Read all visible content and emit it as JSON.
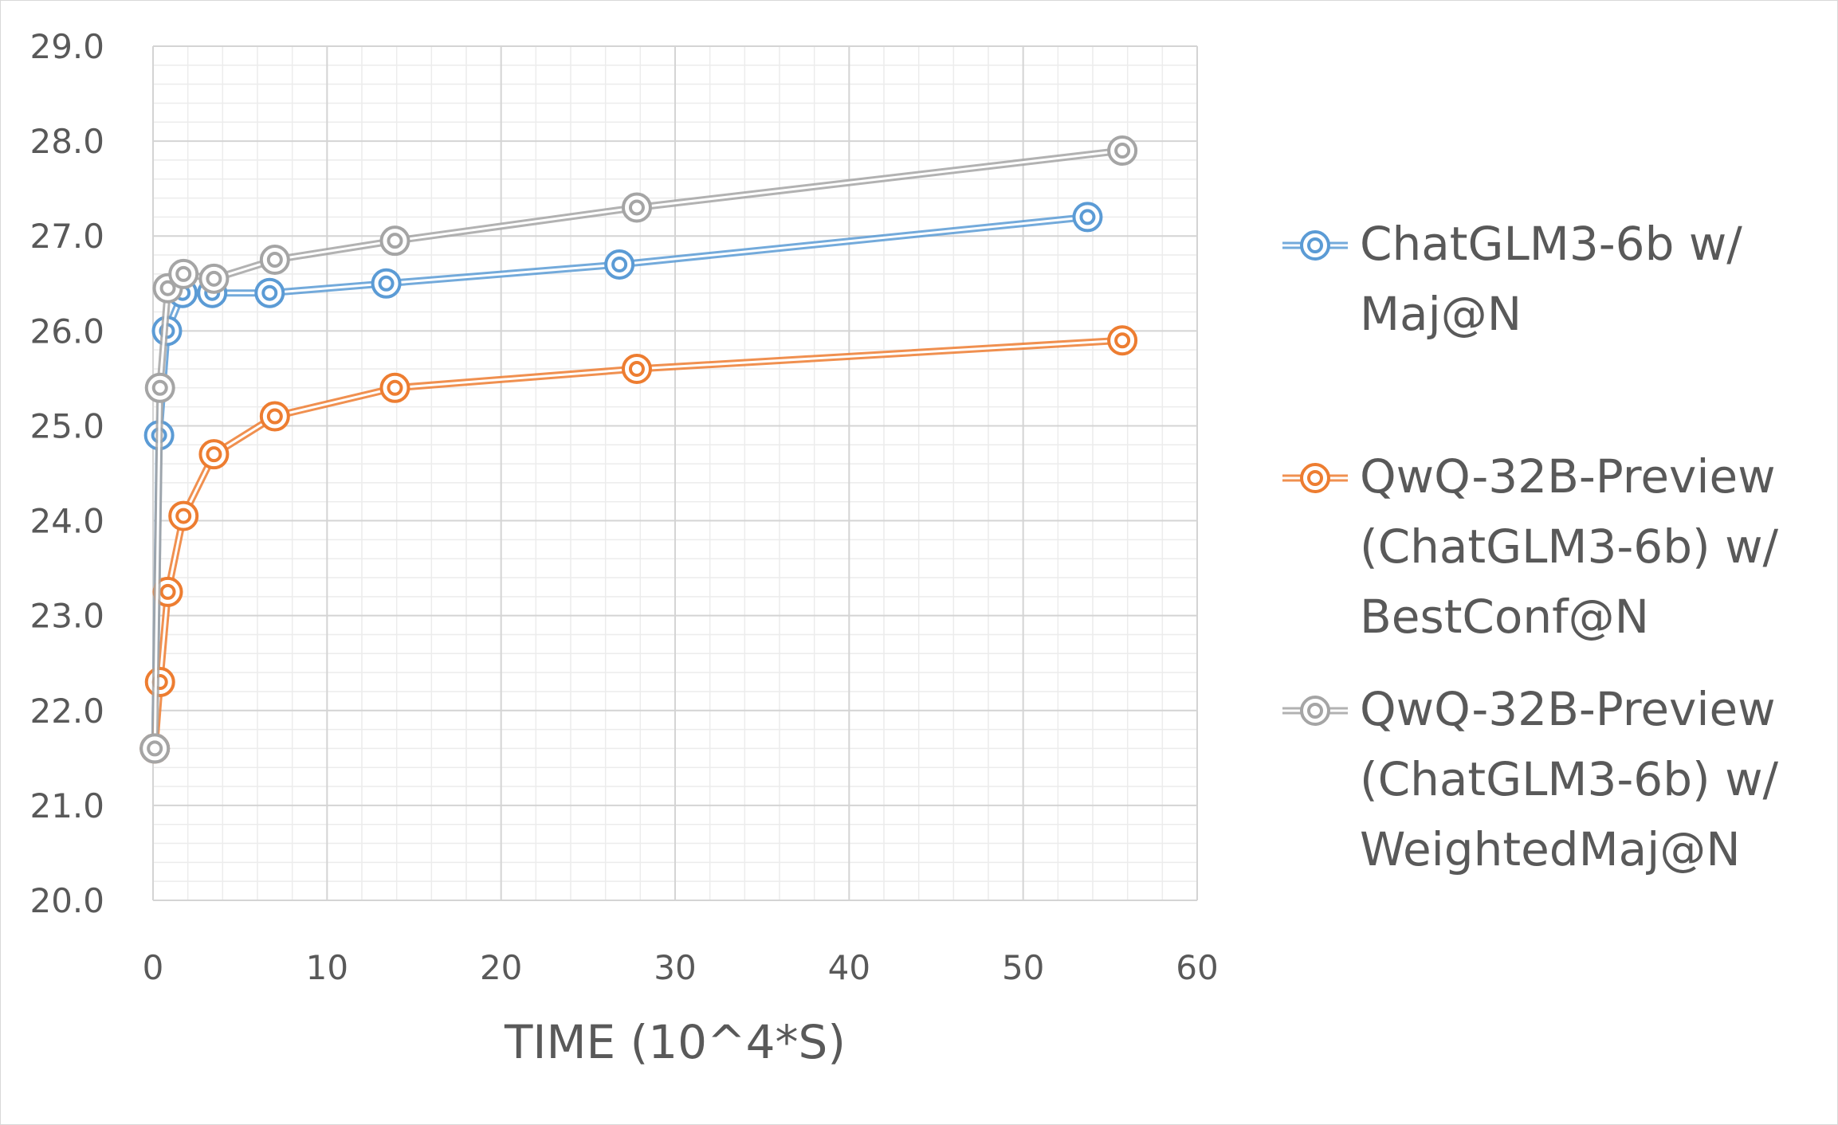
{
  "chart_data": {
    "type": "line",
    "title": "",
    "xlabel": "TIME (10^4*S)",
    "ylabel": "",
    "xlim": [
      0,
      60
    ],
    "ylim": [
      20.0,
      29.0
    ],
    "x_ticks": [
      "0",
      "10",
      "20",
      "30",
      "40",
      "50",
      "60"
    ],
    "y_ticks": [
      "20.0",
      "21.0",
      "22.0",
      "23.0",
      "24.0",
      "25.0",
      "26.0",
      "27.0",
      "28.0",
      "29.0"
    ],
    "grid": "major and minor",
    "legend_position": "right",
    "series": [
      {
        "name": "ChatGLM3-6b w/ Maj@N",
        "legend_lines": [
          "ChatGLM3-6b w/",
          "Maj@N"
        ],
        "color": "#5B9BD5",
        "x": [
          0.1,
          0.35,
          0.8,
          1.7,
          3.4,
          6.7,
          13.4,
          26.8,
          53.7
        ],
        "y": [
          21.6,
          24.9,
          26.0,
          26.4,
          26.4,
          26.4,
          26.5,
          26.7,
          27.2
        ]
      },
      {
        "name": "QwQ-32B-Preview (ChatGLM3-6b) w/ BestConf@N",
        "legend_lines": [
          "QwQ-32B-Preview",
          "(ChatGLM3-6b) w/",
          "BestConf@N"
        ],
        "color": "#ED7D31",
        "x": [
          0.1,
          0.4,
          0.85,
          1.75,
          3.5,
          7.0,
          13.9,
          27.8,
          55.7
        ],
        "y": [
          21.6,
          22.3,
          23.25,
          24.05,
          24.7,
          25.1,
          25.4,
          25.6,
          25.9
        ]
      },
      {
        "name": "QwQ-32B-Preview (ChatGLM3-6b) w/ WeightedMaj@N",
        "legend_lines": [
          "QwQ-32B-Preview",
          "(ChatGLM3-6b) w/",
          "WeightedMaj@N"
        ],
        "color": "#A5A5A5",
        "x": [
          0.1,
          0.4,
          0.85,
          1.75,
          3.5,
          7.0,
          13.9,
          27.8,
          55.7
        ],
        "y": [
          21.6,
          25.4,
          26.45,
          26.6,
          26.55,
          26.75,
          26.95,
          27.3,
          27.9
        ]
      }
    ]
  }
}
